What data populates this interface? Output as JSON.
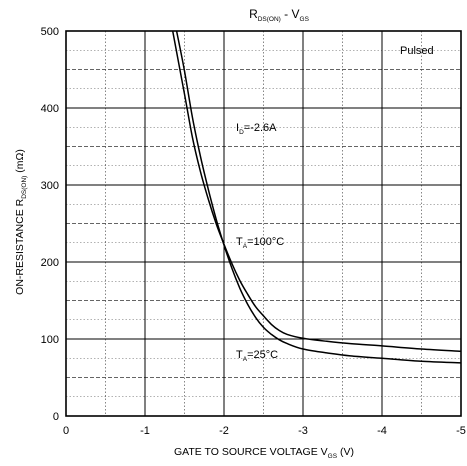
{
  "chart_data": {
    "type": "line",
    "title": {
      "main": "R",
      "main_sub": "DS(ON)",
      "sep": " - V",
      "sep_sub": "GS"
    },
    "xlabel": {
      "text": "GATE TO SOURCE VOLTAGE V",
      "sub": "GS",
      "unit": " (V)"
    },
    "ylabel": {
      "text": "ON-RESISTANCE R",
      "sub": "DS(ON)",
      "unit": " (mΩ)"
    },
    "xlim": [
      0,
      -5
    ],
    "ylim": [
      0,
      500
    ],
    "x_ticks": [
      0,
      -1,
      -2,
      -3,
      -4,
      -5
    ],
    "x_tick_labels": [
      "0",
      "-1",
      "-2",
      "-3",
      "-4",
      "-5"
    ],
    "y_ticks": [
      0,
      100,
      200,
      300,
      400,
      500
    ],
    "y_tick_labels": [
      "0",
      "100",
      "200",
      "300",
      "400",
      "500"
    ],
    "grid": true,
    "annotations": {
      "pulsed": "Pulsed",
      "id": {
        "main": "I",
        "sub": "D",
        "rest": "=-2.6A"
      },
      "t100": {
        "main": "T",
        "sub": "A",
        "rest": "=100°C"
      },
      "t25": {
        "main": "T",
        "sub": "A",
        "rest": "=25°C"
      }
    },
    "series": [
      {
        "label_ref": "t100",
        "color": "#000000",
        "x": [
          -1.35,
          -1.5,
          -1.6,
          -1.7,
          -1.8,
          -1.9,
          -2.0,
          -2.1,
          -2.2,
          -2.3,
          -2.4,
          -2.5,
          -2.6,
          -2.7,
          -2.8,
          -3.0,
          -3.3,
          -3.6,
          -4.0,
          -4.5,
          -5.0
        ],
        "y": [
          500,
          418,
          362,
          318,
          282,
          250,
          223,
          198,
          176,
          158,
          142,
          130,
          119,
          111,
          106,
          101,
          97,
          94,
          91,
          87,
          84
        ]
      },
      {
        "label_ref": "t25",
        "color": "#000000",
        "x": [
          -1.4,
          -1.5,
          -1.6,
          -1.7,
          -1.8,
          -1.9,
          -2.0,
          -2.1,
          -2.2,
          -2.3,
          -2.4,
          -2.5,
          -2.6,
          -2.7,
          -2.8,
          -3.0,
          -3.3,
          -3.6,
          -4.0,
          -4.5,
          -5.0
        ],
        "y": [
          500,
          448,
          388,
          338,
          295,
          256,
          222,
          192,
          166,
          145,
          128,
          115,
          106,
          99,
          94,
          87,
          82,
          78,
          75,
          71,
          69
        ]
      }
    ]
  }
}
